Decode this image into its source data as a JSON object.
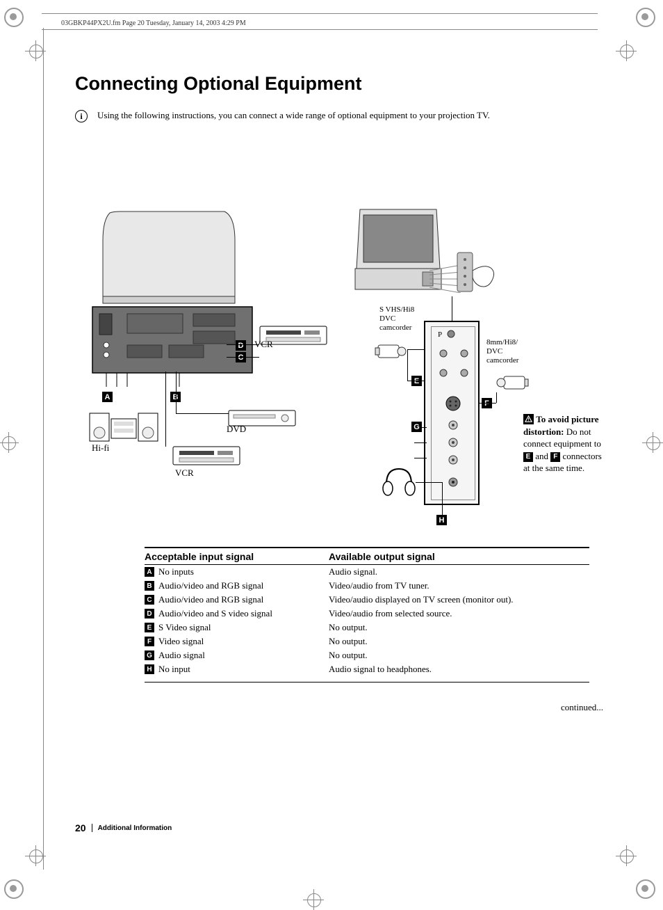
{
  "header_line": "03GBKP44PX2U.fm  Page 20  Tuesday, January 14, 2003  4:29 PM",
  "title": "Connecting Optional Equipment",
  "intro": "Using the following instructions, you can connect a wide range of optional equipment to your projection TV.",
  "diagram": {
    "labels": {
      "vcr": "VCR",
      "vcr2": "VCR",
      "dvd": "DVD",
      "hifi": "Hi-fi",
      "svhs": "S VHS/Hi8\nDVC\ncamcorder",
      "8mm": "8mm/Hi8/\nDVC\ncamcorder"
    },
    "letters": [
      "A",
      "B",
      "C",
      "D",
      "E",
      "F",
      "G",
      "H"
    ],
    "warning_title": "To avoid picture distortion:",
    "warning_body_1": "Do not connect equipment to ",
    "warning_body_2": " and ",
    "warning_body_3": " connectors at the same time.",
    "side_panel_label": "P"
  },
  "table": {
    "col1_header": "Acceptable input signal",
    "col2_header": "Available output signal",
    "rows": [
      {
        "letter": "A",
        "input": "No inputs",
        "output": "Audio signal."
      },
      {
        "letter": "B",
        "input": "Audio/video and RGB signal",
        "output": "Video/audio from TV tuner."
      },
      {
        "letter": "C",
        "input": "Audio/video and RGB signal",
        "output": "Video/audio displayed on TV screen (monitor out)."
      },
      {
        "letter": "D",
        "input": "Audio/video and S video signal",
        "output": "Video/audio from selected source."
      },
      {
        "letter": "E",
        "input": "S Video signal",
        "output": "No output."
      },
      {
        "letter": "F",
        "input": "Video signal",
        "output": "No output."
      },
      {
        "letter": "G",
        "input": "Audio signal",
        "output": "No output."
      },
      {
        "letter": "H",
        "input": "No input",
        "output": "Audio signal to headphones."
      }
    ]
  },
  "continued": "continued...",
  "footer": {
    "page": "20",
    "section": "Additional Information"
  },
  "colors": {
    "fg": "#000000",
    "bg": "#ffffff",
    "crop": "#9a9a9a"
  }
}
